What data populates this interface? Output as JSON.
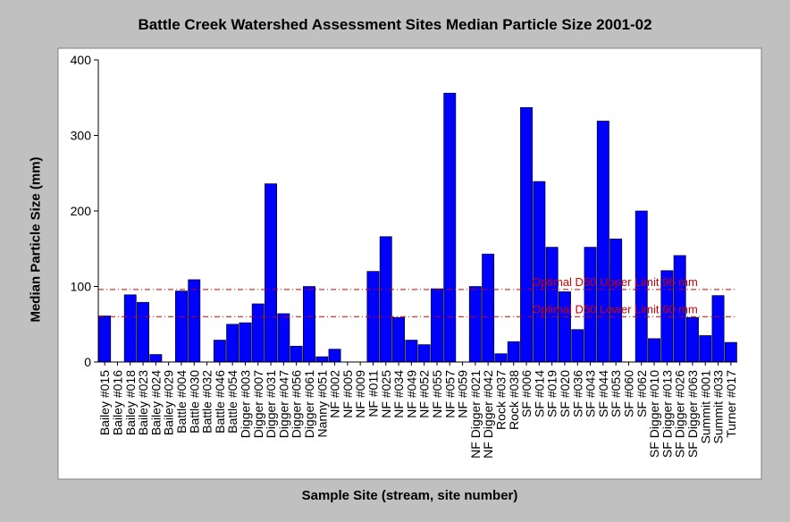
{
  "chart_data": {
    "type": "bar",
    "title": "Battle Creek Watershed Assessment Sites Median Particle Size 2001-02",
    "xlabel": "Sample Site (stream, site number)",
    "ylabel": "Median Particle Size (mm)",
    "ylim": [
      0,
      400
    ],
    "yticks": [
      0,
      100,
      200,
      300,
      400
    ],
    "bar_color": "#0000ff",
    "reference_color": "#cc0000",
    "categories": [
      "Bailey #015",
      "Bailey #016",
      "Bailey #018",
      "Bailey #023",
      "Bailey #024",
      "Bailey #029",
      "Battle #004",
      "Battle #030",
      "Battle #032",
      "Battle #046",
      "Battle #054",
      "Digger #003",
      "Digger #007",
      "Digger #031",
      "Digger #047",
      "Digger #056",
      "Digger #061",
      "Nanny #051",
      "NF #002",
      "NF #005",
      "NF #009",
      "NF #011",
      "NF #025",
      "NF #034",
      "NF #049",
      "NF #052",
      "NF #055",
      "NF #057",
      "NF #059",
      "NF Digger #021",
      "NF Digger #042",
      "Rock #037",
      "Rock #038",
      "SF #006",
      "SF #014",
      "SF #019",
      "SF #020",
      "SF #036",
      "SF #043",
      "SF #044",
      "SF #053",
      "SF #060",
      "SF #062",
      "SF Digger #010",
      "SF Digger #013",
      "SF Digger #026",
      "SF Digger #063",
      "Summit #001",
      "Summit #033",
      "Turner #017"
    ],
    "values": [
      61,
      0,
      89,
      79,
      10,
      0,
      94,
      109,
      0,
      29,
      50,
      52,
      77,
      236,
      64,
      21,
      100,
      7,
      17,
      0,
      0,
      120,
      166,
      59,
      29,
      23,
      97,
      356,
      0,
      100,
      143,
      11,
      27,
      337,
      239,
      152,
      93,
      43,
      152,
      319,
      163,
      0,
      200,
      31,
      121,
      141,
      59,
      35,
      88,
      26
    ],
    "reference_lines": [
      {
        "label": "Optimal D50 Upper Limit 96 mm",
        "value": 96
      },
      {
        "label": "Optimal D50 Lower Limit 60 mm",
        "value": 60
      }
    ]
  }
}
